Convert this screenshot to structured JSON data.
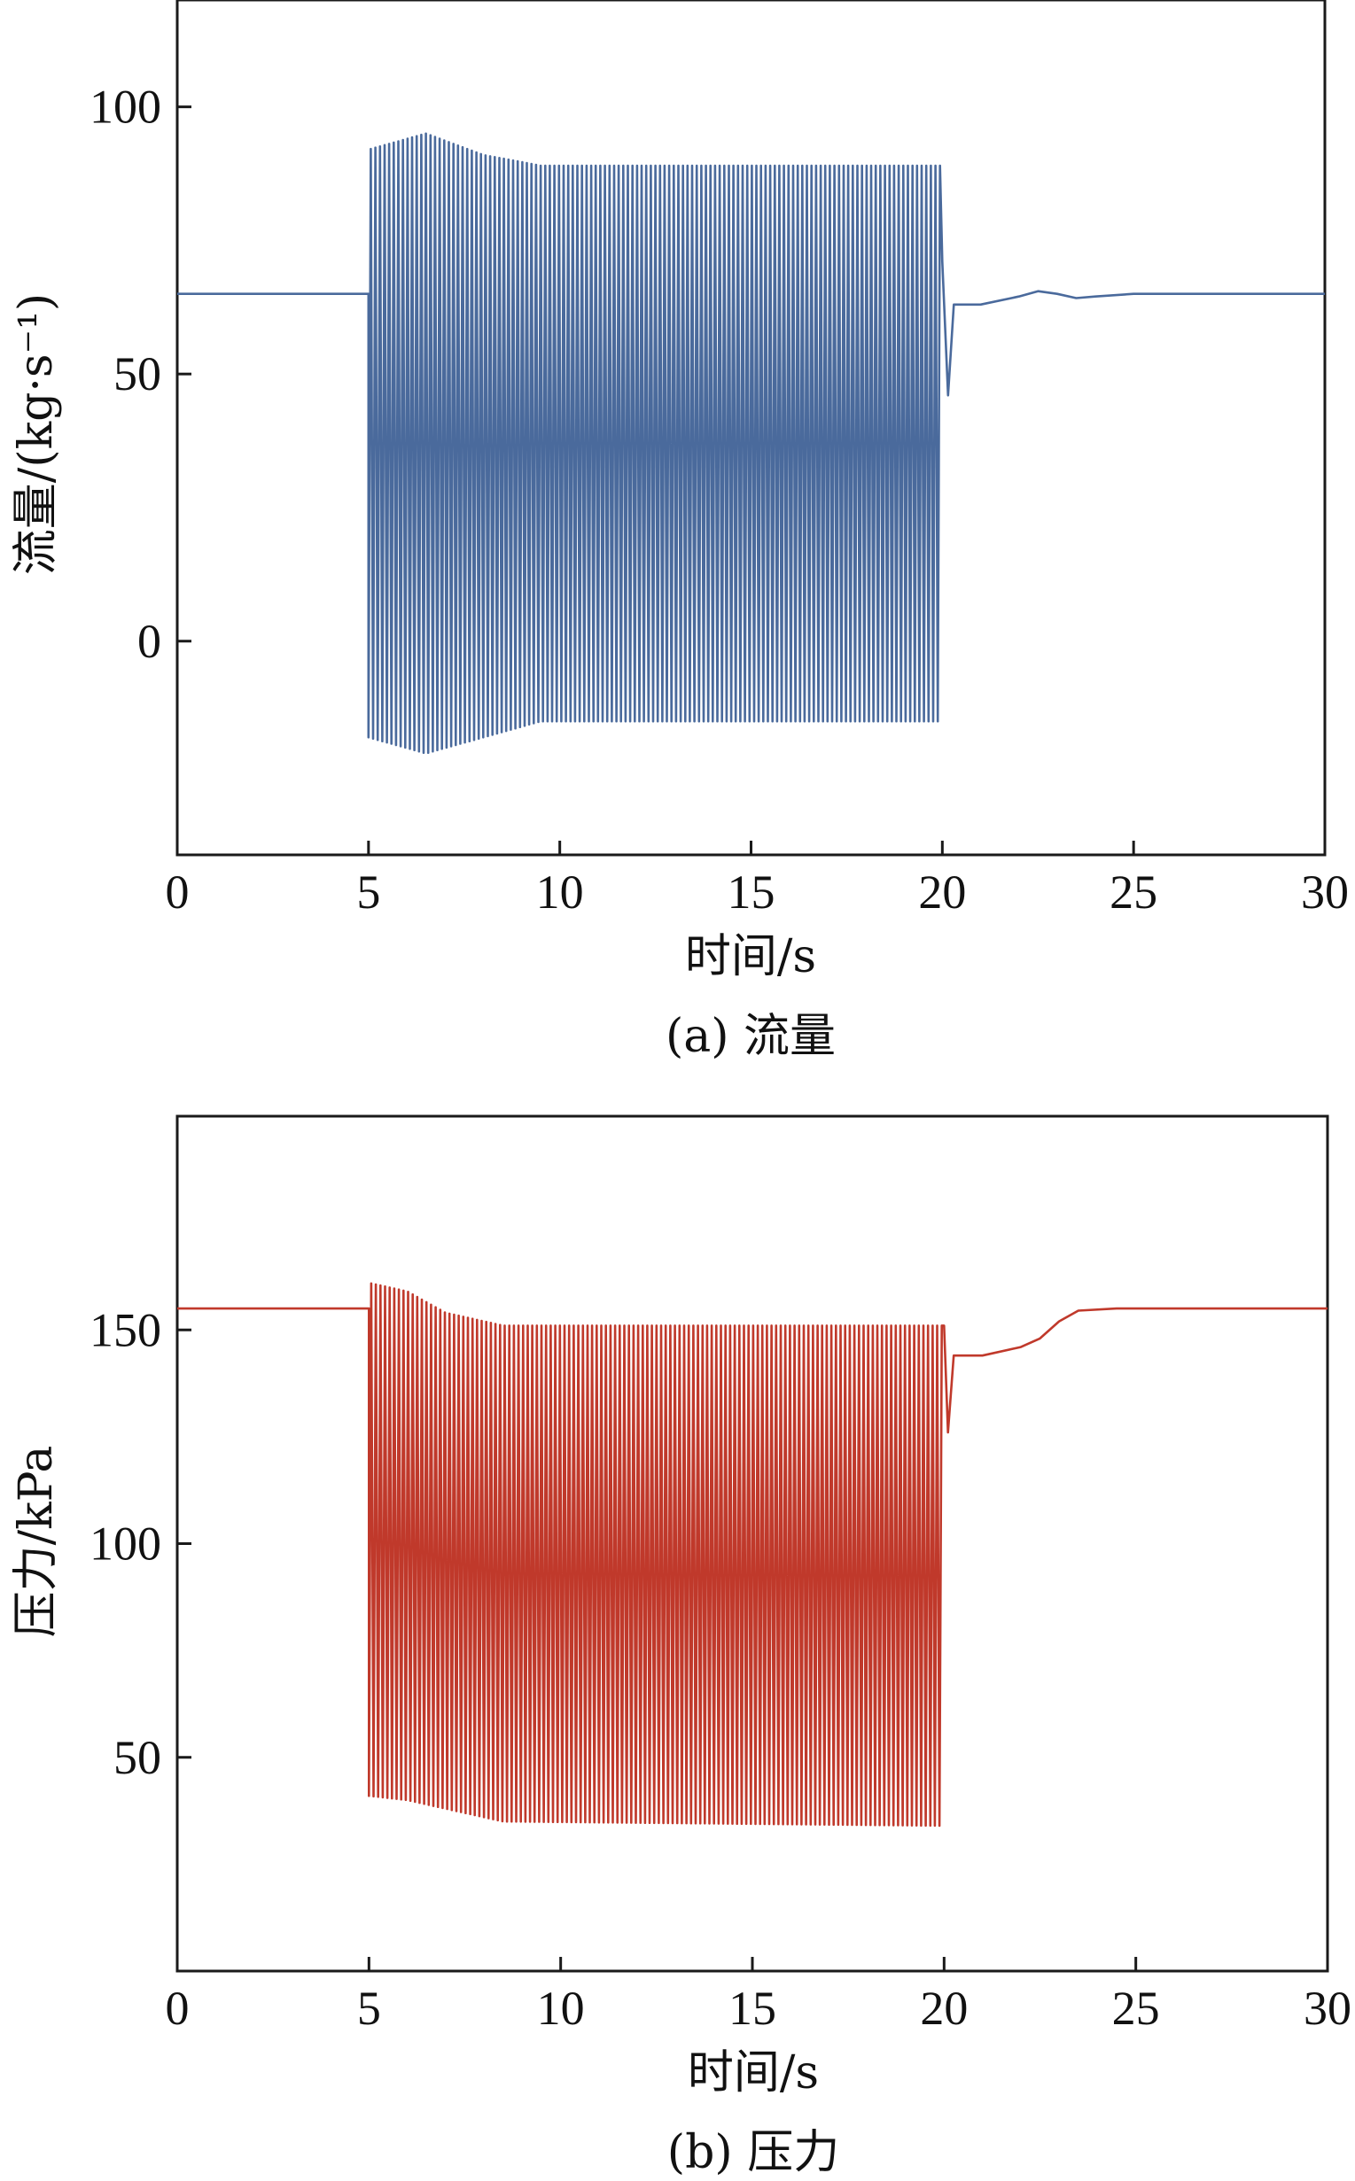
{
  "chart_data": [
    {
      "type": "line",
      "caption": "(a) 流量",
      "xlabel": "时间/s",
      "ylabel": "流量/(kg·s⁻¹)",
      "xlim": [
        0,
        30
      ],
      "ylim": [
        -40,
        120
      ],
      "xticks": [
        0,
        5,
        10,
        15,
        20,
        25,
        30
      ],
      "yticks": [
        0,
        50,
        100
      ],
      "grid": false,
      "series": [
        {
          "color": "#4a6a9c",
          "baseline": 65,
          "oscillation": {
            "start": 5.0,
            "end": 20.0,
            "period": 0.12,
            "envelope": [
              {
                "t": 5.0,
                "max": 92,
                "min": -18
              },
              {
                "t": 6.5,
                "max": 95,
                "min": -21
              },
              {
                "t": 8.0,
                "max": 91,
                "min": -18
              },
              {
                "t": 9.5,
                "max": 89,
                "min": -15
              },
              {
                "t": 20.0,
                "max": 89,
                "min": -15
              }
            ]
          },
          "points": [
            [
              0,
              65
            ],
            [
              5.0,
              65
            ],
            [
              20.0,
              71
            ],
            [
              20.15,
              46
            ],
            [
              20.3,
              63
            ],
            [
              21.0,
              63
            ],
            [
              22.0,
              64.5
            ],
            [
              22.5,
              65.5
            ],
            [
              23.0,
              65
            ],
            [
              23.5,
              64.2
            ],
            [
              24.0,
              64.5
            ],
            [
              25.0,
              65
            ],
            [
              30,
              65
            ]
          ]
        }
      ]
    },
    {
      "type": "line",
      "caption": "(b) 压力",
      "xlabel": "时间/s",
      "ylabel": "压力/kPa",
      "xlim": [
        0,
        30
      ],
      "ylim": [
        0,
        200
      ],
      "xticks": [
        0,
        5,
        10,
        15,
        20,
        25,
        30
      ],
      "yticks": [
        50,
        100,
        150
      ],
      "grid": false,
      "series": [
        {
          "color": "#c0392b",
          "baseline": 155,
          "oscillation": {
            "start": 5.0,
            "end": 20.0,
            "period": 0.12,
            "envelope": [
              {
                "t": 5.0,
                "max": 161,
                "min": 41
              },
              {
                "t": 6.0,
                "max": 159,
                "min": 40
              },
              {
                "t": 7.0,
                "max": 154,
                "min": 38
              },
              {
                "t": 8.5,
                "max": 151,
                "min": 35
              },
              {
                "t": 20.0,
                "max": 151,
                "min": 34
              }
            ]
          },
          "points": [
            [
              0,
              155
            ],
            [
              5.0,
              155
            ],
            [
              20.0,
              151
            ],
            [
              20.1,
              126
            ],
            [
              20.25,
              144
            ],
            [
              21.0,
              144
            ],
            [
              22.0,
              146
            ],
            [
              22.5,
              148
            ],
            [
              23.0,
              152
            ],
            [
              23.5,
              154.5
            ],
            [
              24.5,
              155
            ],
            [
              30,
              155
            ]
          ]
        }
      ]
    }
  ]
}
